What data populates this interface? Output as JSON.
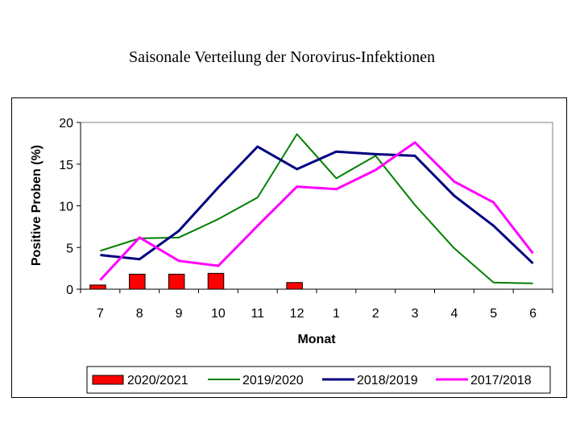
{
  "chart_data": {
    "type": "line",
    "title": "Saisonale Verteilung der Norovirus-Infektionen",
    "xlabel": "Monat",
    "ylabel": "Positive Proben (%)",
    "categories": [
      "7",
      "8",
      "9",
      "10",
      "11",
      "12",
      "1",
      "2",
      "3",
      "4",
      "5",
      "6"
    ],
    "ylim": [
      0,
      20
    ],
    "yticks": [
      0,
      5,
      10,
      15,
      20
    ],
    "grid": false,
    "legend_position": "bottom",
    "series": [
      {
        "name": "2020/2021",
        "kind": "bar",
        "color": "#ff0000",
        "values": [
          0.5,
          1.8,
          1.8,
          1.9,
          null,
          0.8,
          null,
          null,
          null,
          null,
          null,
          null
        ]
      },
      {
        "name": "2019/2020",
        "kind": "line",
        "color": "#008000",
        "values": [
          4.6,
          6.1,
          6.2,
          8.4,
          11.0,
          18.6,
          13.3,
          16.0,
          10.1,
          4.9,
          0.8,
          0.7
        ]
      },
      {
        "name": "2018/2019",
        "kind": "line",
        "color": "#000080",
        "values": [
          4.1,
          3.6,
          7.0,
          12.2,
          17.1,
          14.4,
          16.5,
          16.2,
          16.0,
          11.2,
          7.6,
          3.1
        ]
      },
      {
        "name": "2017/2018",
        "kind": "line",
        "color": "#ff00ff",
        "values": [
          1.1,
          6.2,
          3.4,
          2.8,
          7.6,
          12.3,
          12.0,
          14.3,
          17.6,
          12.9,
          10.4,
          4.3
        ]
      }
    ]
  }
}
